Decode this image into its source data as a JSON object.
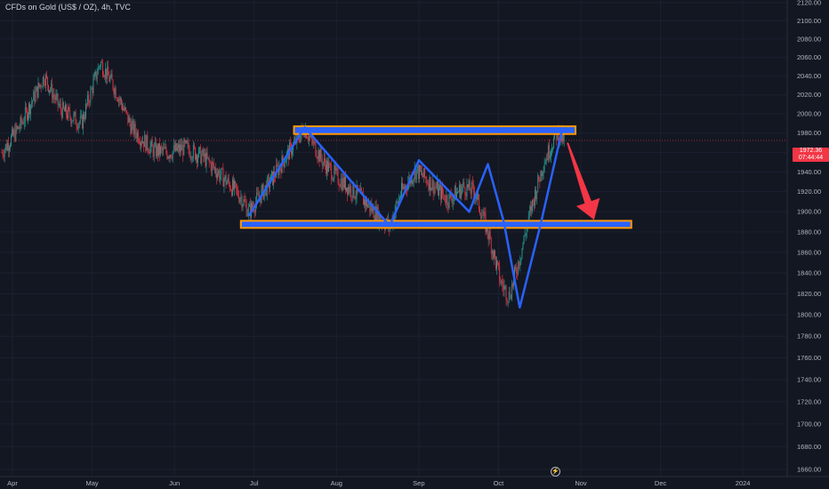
{
  "header": {
    "title": "CFDs on Gold (US$ / OZ), 4h, TVC"
  },
  "price_label": {
    "price": "1972.36",
    "countdown": "07:44:44",
    "color": "#f23645"
  },
  "scroll_icon": "lightning-icon",
  "colors": {
    "background": "#131722",
    "up": "#26a69a",
    "down": "#f23645",
    "zone_fill": "#2962ff",
    "zone_border": "#ff9800",
    "pattern_line": "#2962ff",
    "arrow": "#f23645"
  },
  "chart_data": {
    "type": "candlestick",
    "title": "CFDs on Gold (US$ / OZ), 4h, TVC",
    "ylim": [
      1650,
      2130
    ],
    "y_scale": "log",
    "y_ticks": [
      "1660.00",
      "1680.00",
      "1700.00",
      "1720.00",
      "1740.00",
      "1760.00",
      "1780.00",
      "1800.00",
      "1820.00",
      "1840.00",
      "1860.00",
      "1880.00",
      "1900.00",
      "1920.00",
      "1940.00",
      "1960.00",
      "1980.00",
      "2000.00",
      "2020.00",
      "2040.00",
      "2060.00",
      "2080.00",
      "2100.00",
      "2120.00"
    ],
    "x_ticks": [
      "Apr",
      "May",
      "Jun",
      "Jul",
      "Aug",
      "Sep",
      "Oct",
      "Nov",
      "Dec",
      "2024"
    ],
    "current_price": 1972.36,
    "price_path": [
      {
        "x": "2023-03-28",
        "y": 1960
      },
      {
        "x": "2023-04-04",
        "y": 1988
      },
      {
        "x": "2023-04-13",
        "y": 2040
      },
      {
        "x": "2023-04-19",
        "y": 2005
      },
      {
        "x": "2023-04-27",
        "y": 1990
      },
      {
        "x": "2023-05-04",
        "y": 2055
      },
      {
        "x": "2023-05-09",
        "y": 2030
      },
      {
        "x": "2023-05-16",
        "y": 1985
      },
      {
        "x": "2023-05-24",
        "y": 1962
      },
      {
        "x": "2023-05-30",
        "y": 1960
      },
      {
        "x": "2023-06-05",
        "y": 1965
      },
      {
        "x": "2023-06-12",
        "y": 1955
      },
      {
        "x": "2023-06-19",
        "y": 1935
      },
      {
        "x": "2023-06-26",
        "y": 1915
      },
      {
        "x": "2023-06-29",
        "y": 1900
      },
      {
        "x": "2023-07-07",
        "y": 1930
      },
      {
        "x": "2023-07-14",
        "y": 1960
      },
      {
        "x": "2023-07-20",
        "y": 1985
      },
      {
        "x": "2023-07-27",
        "y": 1950
      },
      {
        "x": "2023-08-03",
        "y": 1930
      },
      {
        "x": "2023-08-10",
        "y": 1915
      },
      {
        "x": "2023-08-17",
        "y": 1895
      },
      {
        "x": "2023-08-21",
        "y": 1885
      },
      {
        "x": "2023-08-25",
        "y": 1918
      },
      {
        "x": "2023-08-31",
        "y": 1942
      },
      {
        "x": "2023-09-05",
        "y": 1930
      },
      {
        "x": "2023-09-12",
        "y": 1912
      },
      {
        "x": "2023-09-18",
        "y": 1925
      },
      {
        "x": "2023-09-22",
        "y": 1920
      },
      {
        "x": "2023-09-27",
        "y": 1880
      },
      {
        "x": "2023-10-02",
        "y": 1830
      },
      {
        "x": "2023-10-05",
        "y": 1818
      },
      {
        "x": "2023-10-09",
        "y": 1855
      },
      {
        "x": "2023-10-13",
        "y": 1900
      },
      {
        "x": "2023-10-18",
        "y": 1950
      },
      {
        "x": "2023-10-23",
        "y": 1980
      },
      {
        "x": "2023-10-26",
        "y": 1972
      }
    ],
    "zones": [
      {
        "x": [
          "2023-07-16",
          "2023-10-30"
        ],
        "y": [
          1979,
          1987
        ]
      },
      {
        "x": [
          "2023-06-26",
          "2023-11-20"
        ],
        "y": [
          1884,
          1891
        ]
      }
    ],
    "pattern": [
      {
        "x": "2023-06-29",
        "y": 1896
      },
      {
        "x": "2023-07-20",
        "y": 1986
      },
      {
        "x": "2023-08-21",
        "y": 1886
      },
      {
        "x": "2023-09-01",
        "y": 1952
      },
      {
        "x": "2023-09-20",
        "y": 1900
      },
      {
        "x": "2023-09-27",
        "y": 1948
      },
      {
        "x": "2023-10-03",
        "y": 1890
      },
      {
        "x": "2023-10-09",
        "y": 1807
      },
      {
        "x": "2023-10-17",
        "y": 1889
      },
      {
        "x": "2023-10-25",
        "y": 1984
      }
    ],
    "projection": {
      "from": {
        "x": "2023-10-27",
        "y": 1970
      },
      "to": {
        "x": "2023-11-06",
        "y": 1892
      }
    }
  }
}
